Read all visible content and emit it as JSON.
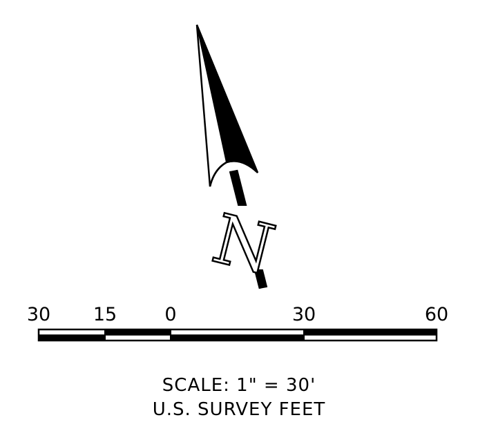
{
  "north_arrow": {
    "letter": "N"
  },
  "scale_bar": {
    "ticks": [
      "30",
      "15",
      "0",
      "30",
      "60"
    ],
    "segments": [
      {
        "fill": "white"
      },
      {
        "fill": "black"
      },
      {
        "fill": "white"
      },
      {
        "fill": "black"
      }
    ]
  },
  "scale_text": {
    "line1": "SCALE: 1\" = 30'",
    "line2": "U.S. SURVEY FEET"
  }
}
